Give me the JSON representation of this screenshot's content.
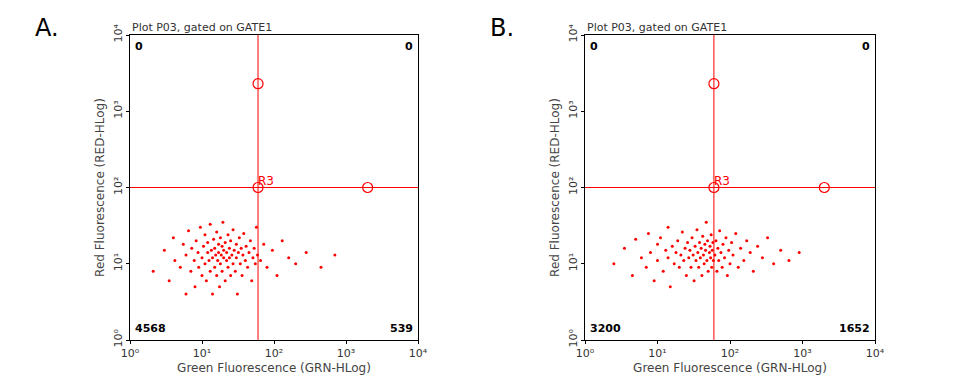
{
  "chart_data": [
    {
      "panel": "A.",
      "type": "scatter",
      "title": "Plot P03, gated on GATE1",
      "x_label": "Green Fluorescence (GRN-HLog)",
      "y_label": "Red Fluorescence (RED-HLog)",
      "color": "#ff0000",
      "marker": "dot",
      "log": true,
      "grid": false,
      "xlim": [
        1,
        10000
      ],
      "ylim": [
        1,
        10000
      ],
      "xticks": [
        {
          "value": 1,
          "label": "10⁰"
        },
        {
          "value": 10,
          "label": "10¹"
        },
        {
          "value": 100,
          "label": "10²"
        },
        {
          "value": 1000,
          "label": "10³"
        },
        {
          "value": 10000,
          "label": "10⁴"
        }
      ],
      "yticks": [
        {
          "value": 1,
          "label": "10⁰"
        },
        {
          "value": 10,
          "label": "10¹"
        },
        {
          "value": 100,
          "label": "10²"
        },
        {
          "value": 1000,
          "label": "10³"
        },
        {
          "value": 10000,
          "label": "10⁴"
        }
      ],
      "quadrant": {
        "label": "R3",
        "x": 60,
        "y": 100
      },
      "handles": {
        "x": [
          60,
          60,
          2000
        ],
        "y": [
          2300,
          100,
          100
        ]
      },
      "quadrant_counts": {
        "upper_left": 0,
        "upper_right": 0,
        "lower_left": 4568,
        "lower_right": 539
      },
      "x": [
        2.1,
        3,
        3.5,
        4,
        4.2,
        5,
        5.5,
        6,
        6,
        6.5,
        7,
        7.2,
        7.8,
        8,
        8.3,
        8.8,
        9,
        9.5,
        10,
        10,
        10.5,
        11,
        11,
        11.5,
        12,
        12,
        12.5,
        13,
        13,
        13.5,
        14,
        14,
        14.5,
        15,
        15,
        15.5,
        16,
        16,
        16.5,
        17,
        17,
        17.5,
        18,
        18,
        18.5,
        19,
        19,
        19.5,
        20,
        20,
        21,
        21,
        22,
        22,
        23,
        23,
        24,
        24,
        25,
        25,
        26,
        27,
        27,
        28,
        29,
        30,
        30,
        31,
        32,
        33,
        34,
        35,
        36,
        37,
        38,
        40,
        41,
        43,
        45,
        47,
        49,
        51,
        53,
        55,
        57,
        59,
        65,
        72,
        80,
        95,
        110,
        130,
        160,
        200,
        280,
        450,
        700
      ],
      "y": [
        8,
        15,
        6,
        22,
        11,
        9,
        18,
        4,
        13,
        27,
        8,
        16,
        11,
        5,
        20,
        14,
        9,
        30,
        12,
        7,
        17,
        10,
        24,
        6,
        14,
        19,
        11,
        8,
        33,
        15,
        12,
        4,
        21,
        9,
        16,
        13,
        7,
        26,
        11,
        18,
        14,
        5,
        10,
        22,
        13,
        8,
        17,
        35,
        12,
        15,
        6,
        19,
        11,
        14,
        24,
        9,
        16,
        12,
        7,
        20,
        13,
        10,
        28,
        15,
        8,
        18,
        12,
        4,
        14,
        22,
        10,
        16,
        7,
        13,
        25,
        11,
        17,
        9,
        14,
        20,
        6,
        12,
        16,
        10,
        30,
        13,
        11,
        18,
        9,
        15,
        7,
        20,
        12,
        10,
        14,
        9,
        13
      ]
    },
    {
      "panel": "B.",
      "type": "scatter",
      "title": "Plot P03, gated on GATE1",
      "x_label": "Green Fluorescence (GRN-HLog)",
      "y_label": "Red Fluorescence (RED-HLog)",
      "color": "#ff0000",
      "marker": "dot",
      "log": true,
      "grid": false,
      "xlim": [
        1,
        10000
      ],
      "ylim": [
        1,
        10000
      ],
      "xticks": [
        {
          "value": 1,
          "label": "10⁰"
        },
        {
          "value": 10,
          "label": "10¹"
        },
        {
          "value": 100,
          "label": "10²"
        },
        {
          "value": 1000,
          "label": "10³"
        },
        {
          "value": 10000,
          "label": "10⁴"
        }
      ],
      "yticks": [
        {
          "value": 1,
          "label": "10⁰"
        },
        {
          "value": 10,
          "label": "10¹"
        },
        {
          "value": 100,
          "label": "10²"
        },
        {
          "value": 1000,
          "label": "10³"
        },
        {
          "value": 10000,
          "label": "10⁴"
        }
      ],
      "quadrant": {
        "label": "R3",
        "x": 60,
        "y": 100
      },
      "handles": {
        "x": [
          60,
          60,
          2000
        ],
        "y": [
          2300,
          100,
          100
        ]
      },
      "quadrant_counts": {
        "upper_left": 0,
        "upper_right": 0,
        "lower_left": 3200,
        "lower_right": 1652
      },
      "x": [
        2.5,
        3.5,
        4.5,
        5,
        6,
        7,
        7.5,
        8,
        9,
        10,
        10,
        11,
        12,
        13,
        14,
        14,
        15,
        16,
        17,
        18,
        19,
        20,
        21,
        22,
        23,
        24,
        25,
        26,
        27,
        28,
        29,
        30,
        31,
        32,
        33,
        34,
        35,
        36,
        37,
        38,
        39,
        40,
        41,
        42,
        43,
        44,
        45,
        46,
        47,
        48,
        49,
        50,
        52,
        53,
        54,
        55,
        56,
        57,
        58,
        59,
        62,
        64,
        66,
        68,
        70,
        72,
        75,
        78,
        80,
        84,
        88,
        92,
        96,
        100,
        105,
        110,
        120,
        130,
        140,
        155,
        170,
        190,
        210,
        240,
        280,
        330,
        400,
        500,
        650,
        900
      ],
      "y": [
        10,
        16,
        7,
        21,
        12,
        9,
        25,
        14,
        6,
        18,
        11,
        22,
        8,
        15,
        12,
        30,
        5,
        17,
        10,
        14,
        20,
        9,
        13,
        26,
        11,
        16,
        7,
        19,
        12,
        15,
        9,
        22,
        13,
        6,
        17,
        11,
        28,
        14,
        9,
        19,
        12,
        16,
        7,
        23,
        13,
        10,
        18,
        15,
        35,
        11,
        20,
        8,
        14,
        17,
        12,
        24,
        9,
        15,
        19,
        11,
        13,
        20,
        8,
        16,
        11,
        27,
        14,
        9,
        18,
        12,
        22,
        7,
        15,
        10,
        19,
        13,
        25,
        9,
        16,
        11,
        20,
        14,
        8,
        17,
        12,
        22,
        10,
        15,
        11,
        14
      ]
    }
  ]
}
